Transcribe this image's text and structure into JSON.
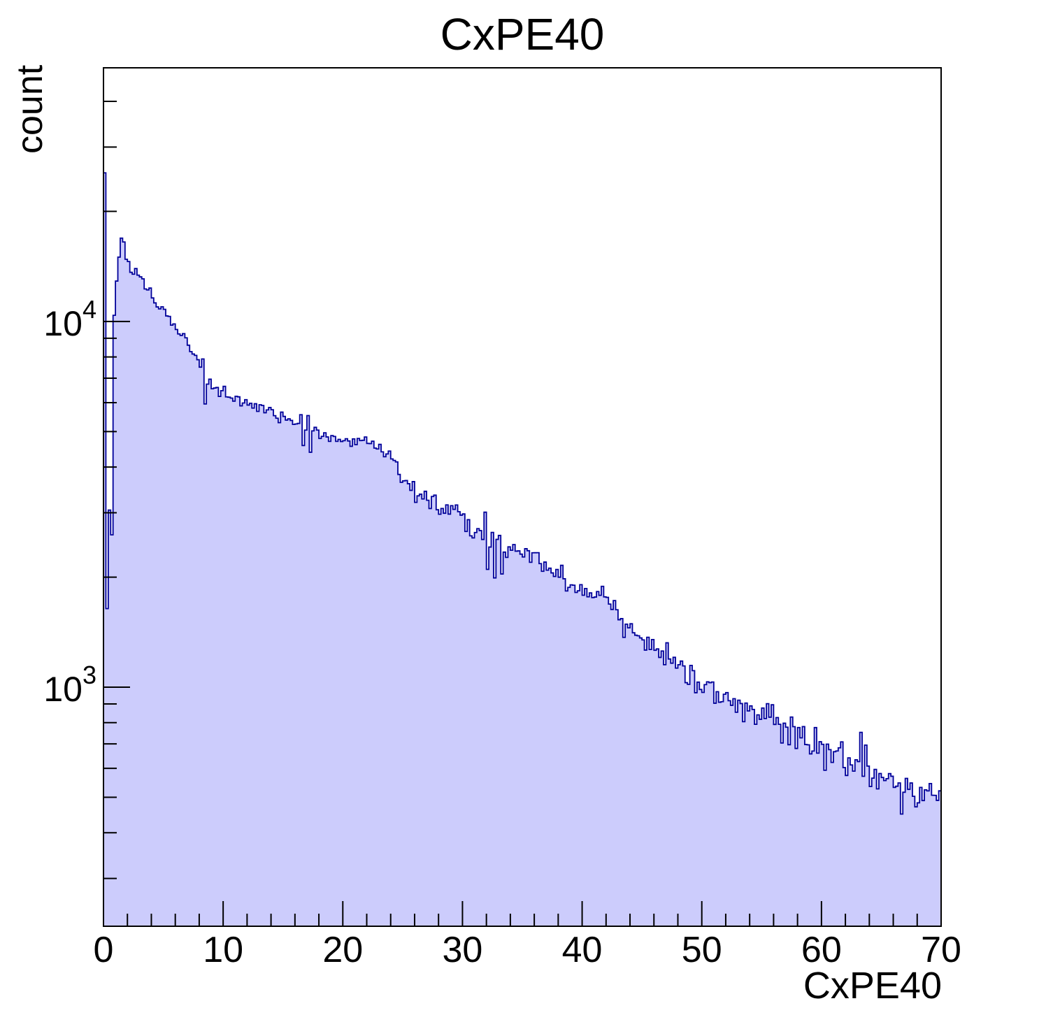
{
  "chart_data": {
    "type": "histogram",
    "title": "CxPE40",
    "xlabel": "CxPE40",
    "ylabel": "count",
    "x_range": [
      0,
      70
    ],
    "y_range": [
      222,
      49400
    ],
    "y_scale": "log",
    "bin_width": 0.2,
    "grid": false,
    "legend": false,
    "x_major_ticks": [
      0,
      10,
      20,
      30,
      40,
      50,
      60,
      70
    ],
    "x_minor_tick_step": 2,
    "y_major_ticks": [
      {
        "value": 1000,
        "base": "10",
        "exp": "3"
      },
      {
        "value": 10000,
        "base": "10",
        "exp": "4"
      }
    ],
    "y_minor_decades": [
      100,
      1000,
      10000
    ],
    "colors": {
      "fill": "#ccccfc",
      "line": "#000099",
      "frame": "#000000",
      "text": "#000000"
    },
    "envelope_points": [
      [
        2.1,
        14500
      ],
      [
        2.4,
        13300
      ],
      [
        2.7,
        13900
      ],
      [
        3.0,
        13400
      ],
      [
        3.5,
        12700
      ],
      [
        4.0,
        11900
      ],
      [
        4.5,
        11200
      ],
      [
        5.0,
        10800
      ],
      [
        5.5,
        10100
      ],
      [
        6.0,
        9600
      ],
      [
        6.5,
        9300
      ],
      [
        7.0,
        8800
      ],
      [
        7.5,
        8150
      ],
      [
        8.0,
        7850
      ],
      [
        8.5,
        7000
      ],
      [
        9.0,
        6700
      ],
      [
        9.5,
        6550
      ],
      [
        10,
        6360
      ],
      [
        11,
        6170
      ],
      [
        12,
        6030
      ],
      [
        13,
        5860
      ],
      [
        14,
        5650
      ],
      [
        15,
        5450
      ],
      [
        16,
        5280
      ],
      [
        17,
        5100
      ],
      [
        18,
        4900
      ],
      [
        19,
        4780
      ],
      [
        20,
        4800
      ],
      [
        21,
        4700
      ],
      [
        22,
        4740
      ],
      [
        23,
        4500
      ],
      [
        24,
        4200
      ],
      [
        25,
        3800
      ],
      [
        26,
        3450
      ],
      [
        27,
        3350
      ],
      [
        28,
        3150
      ],
      [
        29,
        3080
      ],
      [
        30,
        2920
      ],
      [
        31,
        2730
      ],
      [
        32,
        2550
      ],
      [
        33,
        2400
      ],
      [
        34,
        2290
      ],
      [
        35,
        2380
      ],
      [
        36,
        2240
      ],
      [
        37,
        2140
      ],
      [
        38,
        2050
      ],
      [
        39,
        1940
      ],
      [
        40,
        1880
      ],
      [
        41,
        1760
      ],
      [
        42,
        1690
      ],
      [
        43,
        1580
      ],
      [
        44,
        1400
      ],
      [
        45,
        1320
      ],
      [
        46,
        1260
      ],
      [
        47,
        1180
      ],
      [
        48,
        1160
      ],
      [
        49,
        1080
      ],
      [
        50,
        1040
      ],
      [
        51,
        990
      ],
      [
        52,
        950
      ],
      [
        53,
        910
      ],
      [
        54,
        870
      ],
      [
        55,
        815
      ],
      [
        56,
        780
      ],
      [
        57,
        790
      ],
      [
        58,
        730
      ],
      [
        59,
        700
      ],
      [
        60,
        685
      ],
      [
        61,
        660
      ],
      [
        62,
        630
      ],
      [
        63,
        620
      ],
      [
        64,
        590
      ],
      [
        65,
        580
      ],
      [
        66,
        550
      ],
      [
        67,
        525
      ],
      [
        68,
        510
      ],
      [
        69,
        500
      ],
      [
        70,
        505
      ]
    ],
    "override_bins": [
      [
        0.1,
        25500
      ],
      [
        0.3,
        1640
      ],
      [
        0.5,
        3050
      ],
      [
        0.7,
        2610
      ],
      [
        0.9,
        10400
      ],
      [
        1.1,
        12900
      ],
      [
        1.3,
        15000
      ],
      [
        1.5,
        16900
      ],
      [
        1.7,
        16500
      ],
      [
        1.9,
        14800
      ],
      [
        4.1,
        11600
      ],
      [
        8.3,
        7900
      ],
      [
        8.5,
        5950
      ],
      [
        16.5,
        5560
      ],
      [
        16.7,
        4580
      ],
      [
        17.1,
        5530
      ],
      [
        17.3,
        4390
      ],
      [
        31.9,
        3010
      ],
      [
        32.1,
        2100
      ],
      [
        32.5,
        2650
      ],
      [
        32.7,
        1990
      ],
      [
        33.1,
        2600
      ],
      [
        33.3,
        2040
      ],
      [
        66.7,
        450
      ]
    ],
    "noise": {
      "seed": 1337,
      "coeff": 0.7,
      "max_log_sigma": 0.09
    }
  }
}
